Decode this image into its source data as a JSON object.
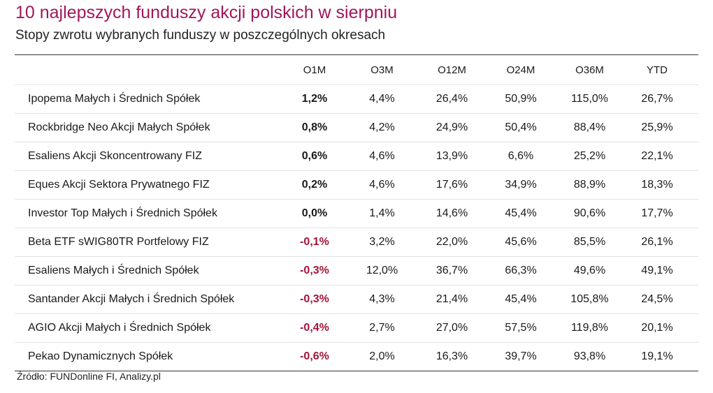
{
  "title": "10 najlepszych funduszy akcji polskich w sierpniu",
  "subtitle": "Stopy zwrotu wybranych funduszy w poszczególnych okresach",
  "colors": {
    "title": "#a0175a",
    "negative": "#a3153a"
  },
  "table": {
    "columns": [
      "",
      "O1M",
      "O3M",
      "O12M",
      "O24M",
      "O36M",
      "YTD"
    ],
    "rows": [
      [
        "Ipopema Małych i Średnich Spółek",
        "1,2%",
        "4,4%",
        "26,4%",
        "50,9%",
        "115,0%",
        "26,7%"
      ],
      [
        "Rockbridge Neo Akcji Małych Spółek",
        "0,8%",
        "4,2%",
        "24,9%",
        "50,4%",
        "88,4%",
        "25,9%"
      ],
      [
        "Esaliens Akcji Skoncentrowany FIZ",
        "0,6%",
        "4,6%",
        "13,9%",
        "6,6%",
        "25,2%",
        "22,1%"
      ],
      [
        "Eques Akcji Sektora Prywatnego FIZ",
        "0,2%",
        "4,6%",
        "17,6%",
        "34,9%",
        "88,9%",
        "18,3%"
      ],
      [
        "Investor Top Małych i Średnich Spółek",
        "0,0%",
        "1,4%",
        "14,6%",
        "45,4%",
        "90,6%",
        "17,7%"
      ],
      [
        "Beta ETF sWIG80TR Portfelowy FIZ",
        "-0,1%",
        "3,2%",
        "22,0%",
        "45,6%",
        "85,5%",
        "26,1%"
      ],
      [
        "Esaliens Małych i Średnich Spółek",
        "-0,3%",
        "12,0%",
        "36,7%",
        "66,3%",
        "49,6%",
        "49,1%"
      ],
      [
        "Santander Akcji Małych i Średnich Spółek",
        "-0,3%",
        "4,3%",
        "21,4%",
        "45,4%",
        "105,8%",
        "24,5%"
      ],
      [
        "AGIO Akcji Małych i Średnich Spółek",
        "-0,4%",
        "2,7%",
        "27,0%",
        "57,5%",
        "119,8%",
        "20,1%"
      ],
      [
        "Pekao Dynamicznych Spółek",
        "-0,6%",
        "2,0%",
        "16,3%",
        "39,7%",
        "93,8%",
        "19,1%"
      ]
    ]
  },
  "source": "Źródło: FUNDonline FI, Analizy.pl"
}
